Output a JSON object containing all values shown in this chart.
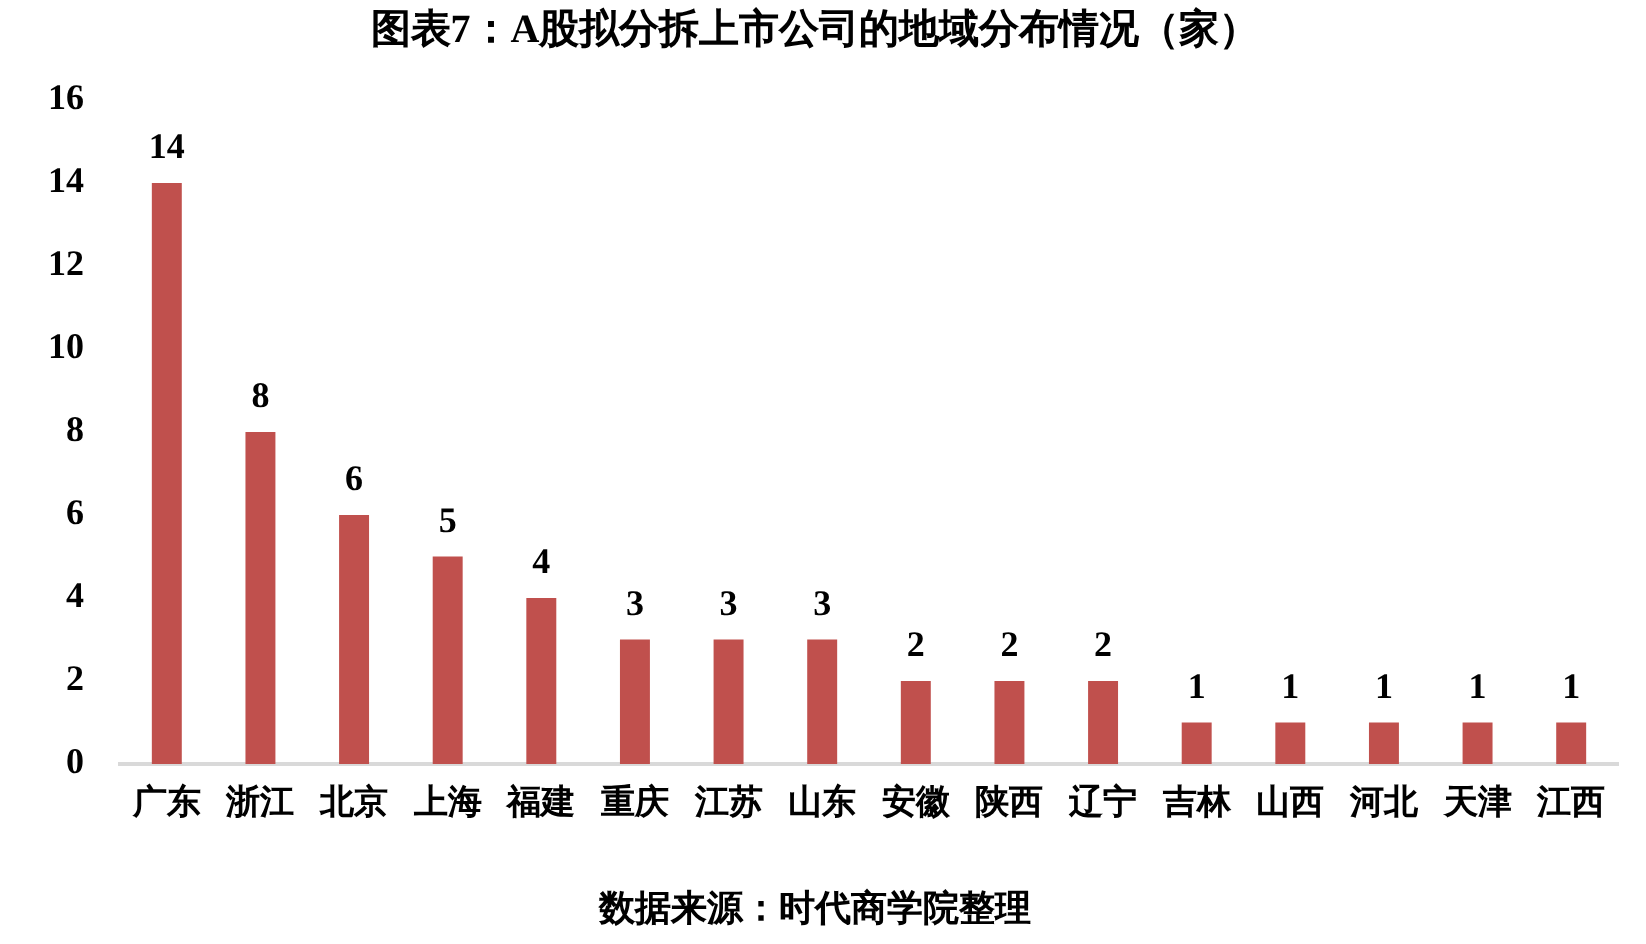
{
  "chart_data": {
    "type": "bar",
    "title": "图表7：A股拟分拆上市公司的地域分布情况（家）",
    "categories": [
      "广东",
      "浙江",
      "北京",
      "上海",
      "福建",
      "重庆",
      "江苏",
      "山东",
      "安徽",
      "陕西",
      "辽宁",
      "吉林",
      "山西",
      "河北",
      "天津",
      "江西"
    ],
    "values": [
      14,
      8,
      6,
      5,
      4,
      3,
      3,
      3,
      2,
      2,
      2,
      1,
      1,
      1,
      1,
      1
    ],
    "color": "#c0504d",
    "ylim": [
      0,
      16
    ],
    "yticks": [
      0,
      2,
      4,
      6,
      8,
      10,
      12,
      14,
      16
    ],
    "grid": false,
    "data_labels": true,
    "annotations": [
      "数据来源：时代商学院整理"
    ]
  }
}
